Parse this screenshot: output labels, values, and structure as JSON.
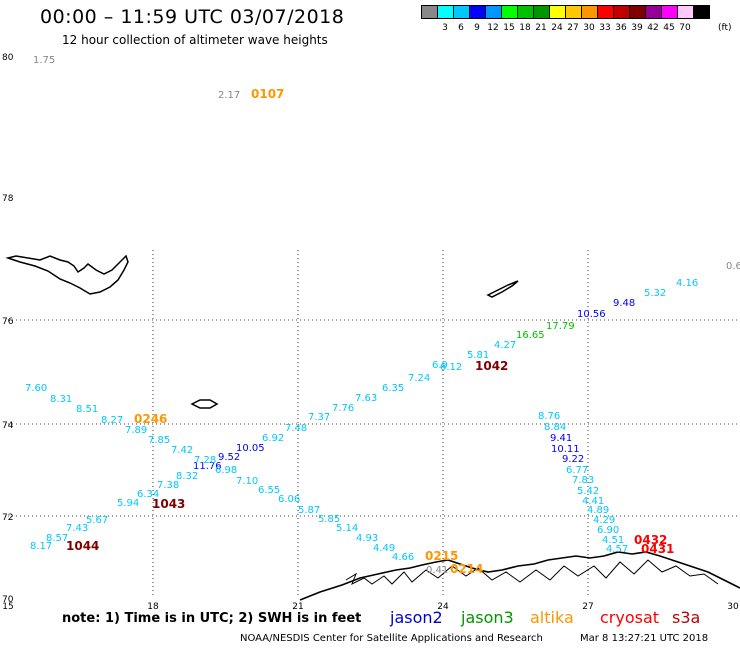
{
  "header": {
    "title": "00:00 – 11:59 UTC 03/07/2018",
    "subtitle": "12 hour collection of altimeter wave heights"
  },
  "legend": {
    "units": "(ft)",
    "bins": [
      {
        "label": "",
        "color": "#888888"
      },
      {
        "label": "3",
        "color": "#00ffff"
      },
      {
        "label": "6",
        "color": "#00c8ff"
      },
      {
        "label": "9",
        "color": "#0000ff"
      },
      {
        "label": "12",
        "color": "#0096ff"
      },
      {
        "label": "15",
        "color": "#00ff00"
      },
      {
        "label": "18",
        "color": "#00c000"
      },
      {
        "label": "21",
        "color": "#009600"
      },
      {
        "label": "24",
        "color": "#ffff00"
      },
      {
        "label": "27",
        "color": "#ffc800"
      },
      {
        "label": "30",
        "color": "#ff9600"
      },
      {
        "label": "33",
        "color": "#ff0000"
      },
      {
        "label": "36",
        "color": "#c00000"
      },
      {
        "label": "39",
        "color": "#800000"
      },
      {
        "label": "42",
        "color": "#960096"
      },
      {
        "label": "45",
        "color": "#ff00ff"
      },
      {
        "label": "70",
        "color": "#ffc8ff"
      },
      {
        "label": "",
        "color": "#000000"
      }
    ]
  },
  "axes": {
    "lat_labels": [
      "80",
      "78",
      "76",
      "74",
      "72",
      "70"
    ],
    "lon_labels": [
      "15",
      "18",
      "21",
      "24",
      "27",
      "30"
    ]
  },
  "readings": [
    {
      "value": "1.75",
      "color": "#888888"
    },
    {
      "value": "2.17",
      "color": "#888888"
    },
    {
      "value": "0.6",
      "color": "#888888"
    },
    {
      "value": "4.16",
      "color": "#00c8ff"
    },
    {
      "value": "5.32",
      "color": "#00c8ff"
    },
    {
      "value": "9.48",
      "color": "#0000ff"
    },
    {
      "value": "10.56",
      "color": "#0000ff"
    },
    {
      "value": "17.79",
      "color": "#00c000"
    },
    {
      "value": "16.65",
      "color": "#00c000"
    },
    {
      "value": "4.27",
      "color": "#00c8ff"
    },
    {
      "value": "5.81",
      "color": "#00c8ff"
    },
    {
      "value": "6.12",
      "color": "#00c8ff"
    },
    {
      "value": "6.9",
      "color": "#00c8ff"
    },
    {
      "value": "7.24",
      "color": "#00c8ff"
    },
    {
      "value": "6.35",
      "color": "#00c8ff"
    },
    {
      "value": "7.63",
      "color": "#00c8ff"
    },
    {
      "value": "7.76",
      "color": "#00c8ff"
    },
    {
      "value": "7.37",
      "color": "#00c8ff"
    },
    {
      "value": "7.48",
      "color": "#00c8ff"
    },
    {
      "value": "6.92",
      "color": "#00c8ff"
    },
    {
      "value": "10.05",
      "color": "#0000ff"
    },
    {
      "value": "9.52",
      "color": "#0000ff"
    },
    {
      "value": "11.76",
      "color": "#0000ff"
    },
    {
      "value": "7.60",
      "color": "#00c8ff"
    },
    {
      "value": "8.31",
      "color": "#00c8ff"
    },
    {
      "value": "8.51",
      "color": "#00c8ff"
    },
    {
      "value": "8.27",
      "color": "#00c8ff"
    },
    {
      "value": "7.89",
      "color": "#00c8ff"
    },
    {
      "value": "7.85",
      "color": "#00c8ff"
    },
    {
      "value": "7.42",
      "color": "#00c8ff"
    },
    {
      "value": "7.28",
      "color": "#00c8ff"
    },
    {
      "value": "8.32",
      "color": "#00c8ff"
    },
    {
      "value": "6.98",
      "color": "#00c8ff"
    },
    {
      "value": "7.38",
      "color": "#00c8ff"
    },
    {
      "value": "7.10",
      "color": "#00c8ff"
    },
    {
      "value": "6.34",
      "color": "#00c8ff"
    },
    {
      "value": "6.55",
      "color": "#00c8ff"
    },
    {
      "value": "5.94",
      "color": "#00c8ff"
    },
    {
      "value": "6.06",
      "color": "#00c8ff"
    },
    {
      "value": "5.87",
      "color": "#00c8ff"
    },
    {
      "value": "5.85",
      "color": "#00c8ff"
    },
    {
      "value": "5.67",
      "color": "#00c8ff"
    },
    {
      "value": "7.43",
      "color": "#00c8ff"
    },
    {
      "value": "8.57",
      "color": "#00c8ff"
    },
    {
      "value": "8.17",
      "color": "#00c8ff"
    },
    {
      "value": "5.14",
      "color": "#00c8ff"
    },
    {
      "value": "4.93",
      "color": "#00c8ff"
    },
    {
      "value": "4.49",
      "color": "#00c8ff"
    },
    {
      "value": "4.66",
      "color": "#00c8ff"
    },
    {
      "value": "8.76",
      "color": "#00c8ff"
    },
    {
      "value": "8.84",
      "color": "#00c8ff"
    },
    {
      "value": "9.41",
      "color": "#0000ff"
    },
    {
      "value": "10.11",
      "color": "#0000ff"
    },
    {
      "value": "9.22",
      "color": "#0000ff"
    },
    {
      "value": "6.77",
      "color": "#00c8ff"
    },
    {
      "value": "7.83",
      "color": "#00c8ff"
    },
    {
      "value": "5.42",
      "color": "#00c8ff"
    },
    {
      "value": "4.41",
      "color": "#00c8ff"
    },
    {
      "value": "4.89",
      "color": "#00c8ff"
    },
    {
      "value": "4.29",
      "color": "#00c8ff"
    },
    {
      "value": "6.90",
      "color": "#00c8ff"
    },
    {
      "value": "4.51",
      "color": "#00c8ff"
    },
    {
      "value": "4.57",
      "color": "#00c8ff"
    },
    {
      "value": "0.41",
      "color": "#888888"
    }
  ],
  "pass_times": [
    {
      "value": "0107",
      "color": "#ff9600"
    },
    {
      "value": "1042",
      "color": "#800000"
    },
    {
      "value": "0246",
      "color": "#ff9600"
    },
    {
      "value": "1043",
      "color": "#800000"
    },
    {
      "value": "1044",
      "color": "#800000"
    },
    {
      "value": "0215",
      "color": "#ff9600"
    },
    {
      "value": "0214",
      "color": "#ff9600"
    },
    {
      "value": "0432",
      "color": "#ff0000"
    },
    {
      "value": "0431",
      "color": "#ff0000"
    }
  ],
  "footer": {
    "note": "note: 1) Time is in UTC; 2) SWH is in feet",
    "satellites": [
      {
        "name": "jason2",
        "color": "#0000cc"
      },
      {
        "name": "jason3",
        "color": "#009600"
      },
      {
        "name": "altika",
        "color": "#ff9600"
      },
      {
        "name": "cryosat",
        "color": "#ff0000"
      },
      {
        "name": "s3a",
        "color": "#c00000"
      }
    ],
    "credit": "NOAA/NESDIS Center for Satellite Applications and Research",
    "generated": "Mar  8 13:27:21 UTC 2018"
  }
}
